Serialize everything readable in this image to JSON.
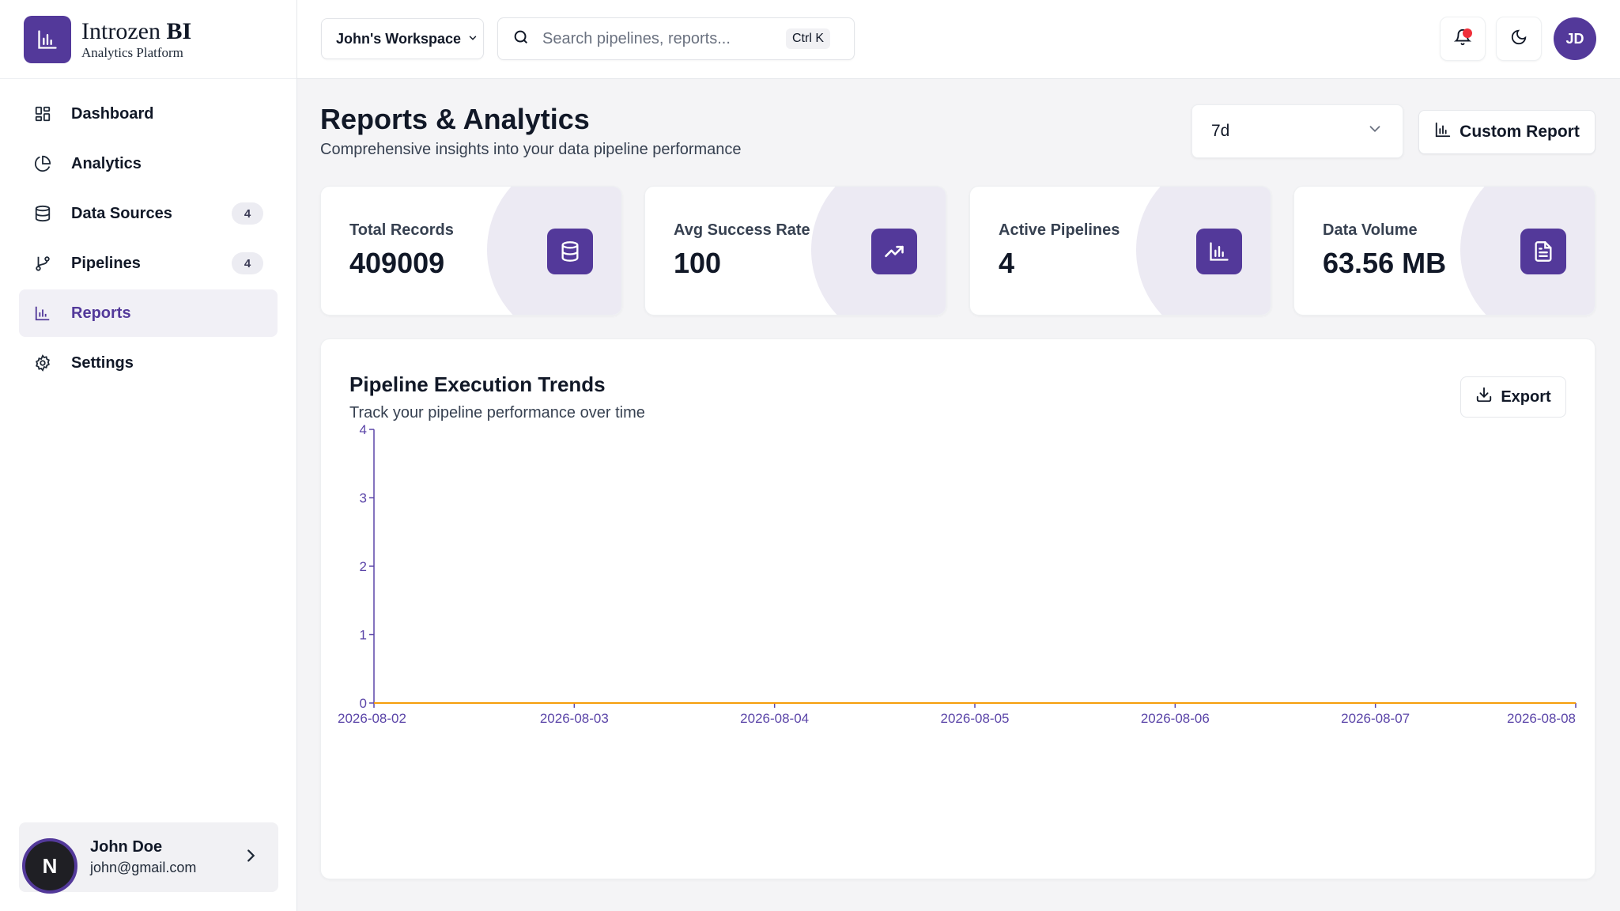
{
  "brand": {
    "title_prefix": "Introzen ",
    "title_bold": "BI",
    "subtitle": "Analytics Platform"
  },
  "sidebar": {
    "items": [
      {
        "label": "Dashboard",
        "icon": "grid-icon",
        "badge": ""
      },
      {
        "label": "Analytics",
        "icon": "pie-chart-icon",
        "badge": ""
      },
      {
        "label": "Data Sources",
        "icon": "database-icon",
        "badge": "4"
      },
      {
        "label": "Pipelines",
        "icon": "git-branch-icon",
        "badge": "4"
      },
      {
        "label": "Reports",
        "icon": "bar-chart-icon",
        "badge": "",
        "active": true
      },
      {
        "label": "Settings",
        "icon": "gear-icon",
        "badge": ""
      }
    ],
    "user": {
      "name": "John Doe",
      "email": "john@gmail.com",
      "avatar_letter": "N"
    }
  },
  "topbar": {
    "workspace": "John's Workspace",
    "search_placeholder": "Search pipelines, reports...",
    "shortcut": "Ctrl K",
    "avatar_initials": "JD"
  },
  "page": {
    "title": "Reports & Analytics",
    "subtitle": "Comprehensive insights into your data pipeline performance",
    "range": "7d",
    "custom_report_label": "Custom Report"
  },
  "stats": [
    {
      "label": "Total Records",
      "value": "409009",
      "icon": "database-icon"
    },
    {
      "label": "Avg Success Rate",
      "value": "100",
      "icon": "trending-up-icon"
    },
    {
      "label": "Active Pipelines",
      "value": "4",
      "icon": "bar-chart-icon"
    },
    {
      "label": "Data Volume",
      "value": "63.56 MB",
      "icon": "file-text-icon"
    }
  ],
  "chart_card": {
    "title": "Pipeline Execution Trends",
    "subtitle": "Track your pipeline performance over time",
    "export_label": "Export"
  },
  "chart_data": {
    "type": "line",
    "x": [
      "2026-08-02",
      "2026-08-03",
      "2026-08-04",
      "2026-08-05",
      "2026-08-06",
      "2026-08-07",
      "2026-08-08"
    ],
    "series": [
      {
        "values": [
          0,
          0,
          0,
          0,
          0,
          0,
          0
        ],
        "color": "#f59e0b"
      }
    ],
    "yticks": [
      0,
      1,
      2,
      3,
      4
    ],
    "ylim": [
      0,
      4
    ],
    "title": "",
    "xlabel": "",
    "ylabel": ""
  },
  "colors": {
    "accent": "#53399a",
    "notification": "#ef2f3a",
    "axis": "#5b45a8"
  }
}
